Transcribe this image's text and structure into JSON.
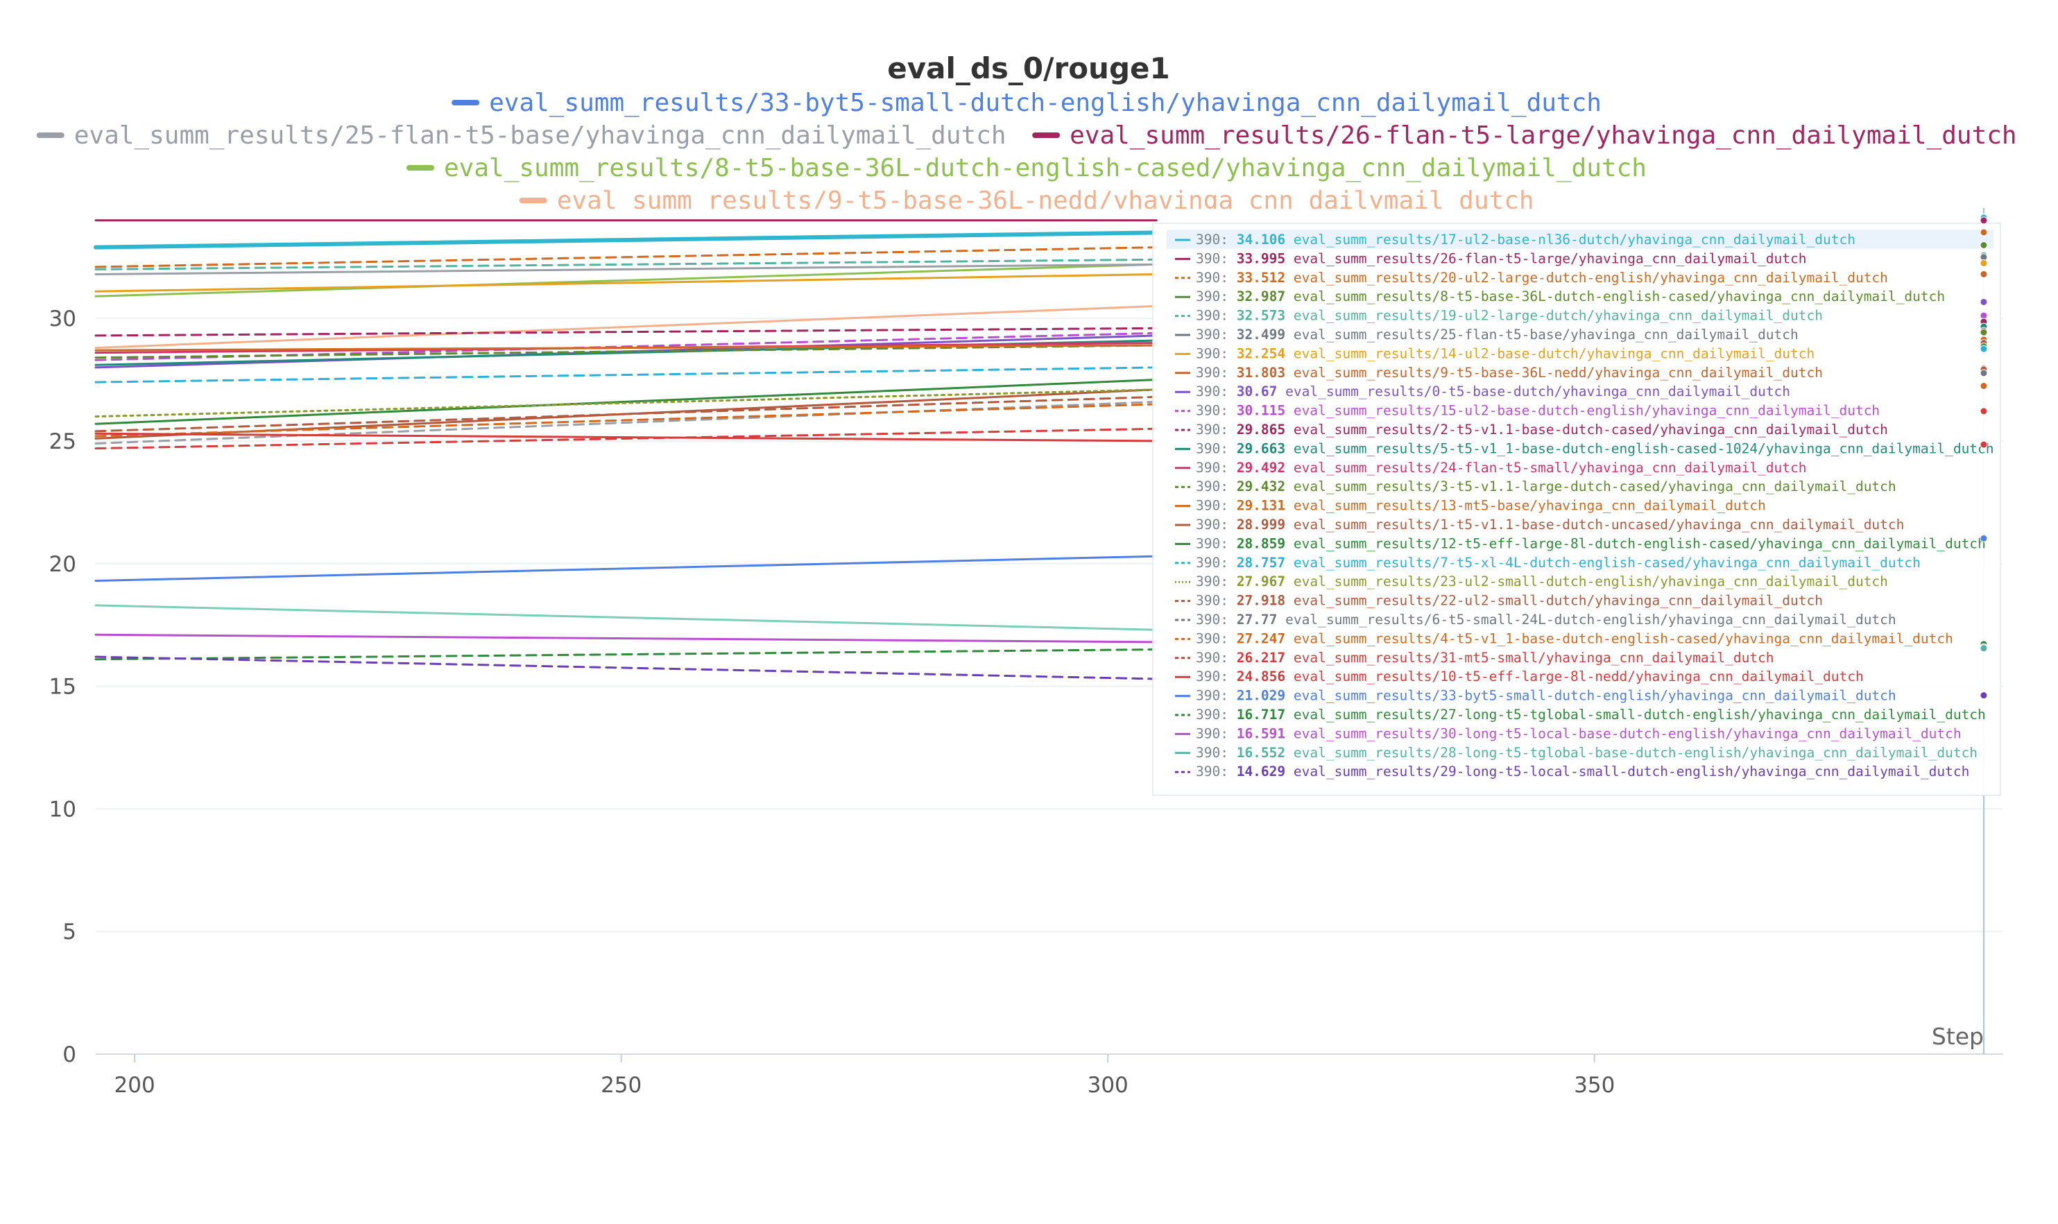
{
  "chart_data": {
    "type": "line",
    "title": "eval_ds_0/rouge1",
    "xlabel": "Step",
    "ylabel": "",
    "xlim": [
      196,
      392
    ],
    "ylim": [
      0,
      34.5
    ],
    "x_ticks": [
      200,
      250,
      300,
      350
    ],
    "y_ticks": [
      0,
      5,
      10,
      15,
      20,
      25,
      30
    ],
    "grid": true,
    "legend_position": "top",
    "legend": [
      {
        "name": "eval_summ_results/33-byt5-small-dutch-english/yhavinga_cnn_dailymail_dutch",
        "color": "#4e7fe3"
      },
      {
        "name": "eval_summ_results/25-flan-t5-base/yhavinga_cnn_dailymail_dutch",
        "color": "#9a9fa7"
      },
      {
        "name": "eval_summ_results/26-flan-t5-large/yhavinga_cnn_dailymail_dutch",
        "color": "#a3245e"
      },
      {
        "name": "eval_summ_results/8-t5-base-36L-dutch-english-cased/yhavinga_cnn_dailymail_dutch",
        "color": "#8cc04f"
      },
      {
        "name": "eval_summ_results/9-t5-base-36L-nedd/yhavinga_cnn_dailymail_dutch",
        "color": "#f4b08c"
      }
    ],
    "tooltip": {
      "step": "390",
      "rows": [
        {
          "value": "34.106",
          "name": "eval_summ_results/17-ul2-base-nl36-dutch/yhavinga_cnn_dailymail_dutch",
          "color": "#2fb6cf",
          "dash": "solid"
        },
        {
          "value": "33.995",
          "name": "eval_summ_results/26-flan-t5-large/yhavinga_cnn_dailymail_dutch",
          "color": "#a3245e",
          "dash": "solid"
        },
        {
          "value": "33.512",
          "name": "eval_summ_results/20-ul2-large-dutch-english/yhavinga_cnn_dailymail_dutch",
          "color": "#d2691e",
          "dash": "dashed"
        },
        {
          "value": "32.987",
          "name": "eval_summ_results/8-t5-base-36L-dutch-english-cased/yhavinga_cnn_dailymail_dutch",
          "color": "#5e8a2e",
          "dash": "solid"
        },
        {
          "value": "32.573",
          "name": "eval_summ_results/19-ul2-large-dutch/yhavinga_cnn_dailymail_dutch",
          "color": "#52b3a0",
          "dash": "dashed"
        },
        {
          "value": "32.499",
          "name": "eval_summ_results/25-flan-t5-base/yhavinga_cnn_dailymail_dutch",
          "color": "#6f7781",
          "dash": "solid"
        },
        {
          "value": "32.254",
          "name": "eval_summ_results/14-ul2-base-dutch/yhavinga_cnn_dailymail_dutch",
          "color": "#e6a01e",
          "dash": "solid"
        },
        {
          "value": "31.803",
          "name": "eval_summ_results/9-t5-base-36L-nedd/yhavinga_cnn_dailymail_dutch",
          "color": "#c8642a",
          "dash": "solid"
        },
        {
          "value": "30.67",
          "name": "eval_summ_results/0-t5-base-dutch/yhavinga_cnn_dailymail_dutch",
          "color": "#7b52c9",
          "dash": "solid"
        },
        {
          "value": "30.115",
          "name": "eval_summ_results/15-ul2-base-dutch-english/yhavinga_cnn_dailymail_dutch",
          "color": "#b94fd0",
          "dash": "dashed"
        },
        {
          "value": "29.865",
          "name": "eval_summ_results/2-t5-v1.1-base-dutch-cased/yhavinga_cnn_dailymail_dutch",
          "color": "#a3245e",
          "dash": "dashed"
        },
        {
          "value": "29.663",
          "name": "eval_summ_results/5-t5-v1_1-base-dutch-english-cased-1024/yhavinga_cnn_dailymail_dutch",
          "color": "#1e8c7a",
          "dash": "solid"
        },
        {
          "value": "29.492",
          "name": "eval_summ_results/24-flan-t5-small/yhavinga_cnn_dailymail_dutch",
          "color": "#d6336c",
          "dash": "solid"
        },
        {
          "value": "29.432",
          "name": "eval_summ_results/3-t5-v1.1-large-dutch-cased/yhavinga_cnn_dailymail_dutch",
          "color": "#5e8a2e",
          "dash": "dashed"
        },
        {
          "value": "29.131",
          "name": "eval_summ_results/13-mt5-base/yhavinga_cnn_dailymail_dutch",
          "color": "#d2691e",
          "dash": "solid"
        },
        {
          "value": "28.999",
          "name": "eval_summ_results/1-t5-v1.1-base-dutch-uncased/yhavinga_cnn_dailymail_dutch",
          "color": "#b35a3c",
          "dash": "solid"
        },
        {
          "value": "28.859",
          "name": "eval_summ_results/12-t5-eff-large-8l-dutch-english-cased/yhavinga_cnn_dailymail_dutch",
          "color": "#2f8a3a",
          "dash": "solid"
        },
        {
          "value": "28.757",
          "name": "eval_summ_results/7-t5-xl-4L-dutch-english-cased/yhavinga_cnn_dailymail_dutch",
          "color": "#2bb0d8",
          "dash": "dashed"
        },
        {
          "value": "27.967",
          "name": "eval_summ_results/23-ul2-small-dutch-english/yhavinga_cnn_dailymail_dutch",
          "color": "#8a9a2e",
          "dash": "dotted"
        },
        {
          "value": "27.918",
          "name": "eval_summ_results/22-ul2-small-dutch/yhavinga_cnn_dailymail_dutch",
          "color": "#b35a3c",
          "dash": "dashed"
        },
        {
          "value": "27.77",
          "name": "eval_summ_results/6-t5-small-24L-dutch-english/yhavinga_cnn_dailymail_dutch",
          "color": "#6f7781",
          "dash": "dashed"
        },
        {
          "value": "27.247",
          "name": "eval_summ_results/4-t5-v1_1-base-dutch-english-cased/yhavinga_cnn_dailymail_dutch",
          "color": "#d2691e",
          "dash": "dashed"
        },
        {
          "value": "26.217",
          "name": "eval_summ_results/31-mt5-small/yhavinga_cnn_dailymail_dutch",
          "color": "#d63c3c",
          "dash": "dashed"
        },
        {
          "value": "24.856",
          "name": "eval_summ_results/10-t5-eff-large-8l-nedd/yhavinga_cnn_dailymail_dutch",
          "color": "#d63c3c",
          "dash": "solid"
        },
        {
          "value": "21.029",
          "name": "eval_summ_results/33-byt5-small-dutch-english/yhavinga_cnn_dailymail_dutch",
          "color": "#4e7fe3",
          "dash": "solid"
        },
        {
          "value": "16.717",
          "name": "eval_summ_results/27-long-t5-tglobal-small-dutch-english/yhavinga_cnn_dailymail_dutch",
          "color": "#2f8a3a",
          "dash": "dashed"
        },
        {
          "value": "16.591",
          "name": "eval_summ_results/30-long-t5-local-base-dutch-english/yhavinga_cnn_dailymail_dutch",
          "color": "#b94fd0",
          "dash": "solid"
        },
        {
          "value": "16.552",
          "name": "eval_summ_results/28-long-t5-tglobal-base-dutch-english/yhavinga_cnn_dailymail_dutch",
          "color": "#52b3a0",
          "dash": "solid"
        },
        {
          "value": "14.629",
          "name": "eval_summ_results/29-long-t5-local-small-dutch-english/yhavinga_cnn_dailymail_dutch",
          "color": "#6a3fb5",
          "dash": "dashed"
        }
      ]
    },
    "series": [
      {
        "name": "eval_summ_results/17-ul2-base-nl36-dutch/yhavinga_cnn_dailymail_dutch",
        "color": "#2fb6cf",
        "dash": "solid",
        "width": 6,
        "x": [
          196,
          305
        ],
        "y": [
          32.9,
          33.5
        ]
      },
      {
        "name": "eval_summ_results/26-flan-t5-large/yhavinga_cnn_dailymail_dutch",
        "color": "#a3245e",
        "dash": "solid",
        "width": 3,
        "x": [
          196,
          305
        ],
        "y": [
          34.0,
          34.0
        ]
      },
      {
        "name": "eval_summ_results/20-ul2-large-dutch-english/yhavinga_cnn_dailymail_dutch",
        "color": "#d2691e",
        "dash": "dashed",
        "width": 3,
        "x": [
          196,
          305
        ],
        "y": [
          32.1,
          32.9
        ]
      },
      {
        "name": "eval_summ_results/8-t5-base-36L-dutch-english-cased/yhavinga_cnn_dailymail_dutch",
        "color": "#8cc04f",
        "dash": "solid",
        "width": 3,
        "x": [
          196,
          305
        ],
        "y": [
          30.9,
          32.2
        ]
      },
      {
        "name": "eval_summ_results/19-ul2-large-dutch/yhavinga_cnn_dailymail_dutch",
        "color": "#52b3a0",
        "dash": "dashed",
        "width": 3,
        "x": [
          196,
          305
        ],
        "y": [
          32.0,
          32.4
        ]
      },
      {
        "name": "eval_summ_results/25-flan-t5-base/yhavinga_cnn_dailymail_dutch",
        "color": "#9a9fa7",
        "dash": "solid",
        "width": 3,
        "x": [
          196,
          305
        ],
        "y": [
          31.8,
          32.2
        ]
      },
      {
        "name": "eval_summ_results/14-ul2-base-dutch/yhavinga_cnn_dailymail_dutch",
        "color": "#e6a01e",
        "dash": "solid",
        "width": 3,
        "x": [
          196,
          305
        ],
        "y": [
          31.1,
          31.8
        ]
      },
      {
        "name": "eval_summ_results/9-t5-base-36L-nedd/yhavinga_cnn_dailymail_dutch",
        "color": "#f4b08c",
        "dash": "solid",
        "width": 3,
        "x": [
          196,
          305
        ],
        "y": [
          28.8,
          30.5
        ]
      },
      {
        "name": "eval_summ_results/0-t5-base-dutch/yhavinga_cnn_dailymail_dutch",
        "color": "#7b52c9",
        "dash": "solid",
        "width": 3,
        "x": [
          196,
          305
        ],
        "y": [
          28.0,
          29.3
        ]
      },
      {
        "name": "eval_summ_results/15-ul2-base-dutch-english/yhavinga_cnn_dailymail_dutch",
        "color": "#b94fd0",
        "dash": "dashed",
        "width": 3,
        "x": [
          196,
          305
        ],
        "y": [
          28.3,
          29.4
        ]
      },
      {
        "name": "eval_summ_results/2-t5-v1.1-base-dutch-cased/yhavinga_cnn_dailymail_dutch",
        "color": "#a3245e",
        "dash": "dashed",
        "width": 3,
        "x": [
          196,
          305
        ],
        "y": [
          29.3,
          29.6
        ]
      },
      {
        "name": "eval_summ_results/5-t5-v1_1-base-dutch-english-cased-1024/yhavinga_cnn_dailymail_dutch",
        "color": "#1e8c7a",
        "dash": "solid",
        "width": 3,
        "x": [
          196,
          305
        ],
        "y": [
          28.1,
          29.1
        ]
      },
      {
        "name": "eval_summ_results/24-flan-t5-small/yhavinga_cnn_dailymail_dutch",
        "color": "#d6336c",
        "dash": "solid",
        "width": 3,
        "x": [
          196,
          305
        ],
        "y": [
          28.6,
          29.0
        ]
      },
      {
        "name": "eval_summ_results/3-t5-v1.1-large-dutch-cased/yhavinga_cnn_dailymail_dutch",
        "color": "#5e8a2e",
        "dash": "dashed",
        "width": 3,
        "x": [
          196,
          305
        ],
        "y": [
          28.4,
          28.9
        ]
      },
      {
        "name": "eval_summ_results/13-mt5-base/yhavinga_cnn_dailymail_dutch",
        "color": "#d2691e",
        "dash": "solid",
        "width": 3,
        "x": [
          196,
          305
        ],
        "y": [
          28.7,
          28.9
        ]
      },
      {
        "name": "eval_summ_results/1-t5-v1.1-base-dutch-uncased/yhavinga_cnn_dailymail_dutch",
        "color": "#b35a3c",
        "dash": "solid",
        "width": 3,
        "x": [
          196,
          305
        ],
        "y": [
          25.1,
          27.1
        ]
      },
      {
        "name": "eval_summ_results/12-t5-eff-large-8l-dutch-english-cased/yhavinga_cnn_dailymail_dutch",
        "color": "#2f8a3a",
        "dash": "solid",
        "width": 3,
        "x": [
          196,
          305
        ],
        "y": [
          25.7,
          27.5
        ]
      },
      {
        "name": "eval_summ_results/7-t5-xl-4L-dutch-english-cased/yhavinga_cnn_dailymail_dutch",
        "color": "#2bb0d8",
        "dash": "dashed",
        "width": 3,
        "x": [
          196,
          305
        ],
        "y": [
          27.4,
          28.0
        ]
      },
      {
        "name": "eval_summ_results/23-ul2-small-dutch-english/yhavinga_cnn_dailymail_dutch",
        "color": "#8a9a2e",
        "dash": "dotted",
        "width": 3,
        "x": [
          196,
          305
        ],
        "y": [
          26.0,
          27.1
        ]
      },
      {
        "name": "eval_summ_results/22-ul2-small-dutch/yhavinga_cnn_dailymail_dutch",
        "color": "#b35a3c",
        "dash": "dashed",
        "width": 3,
        "x": [
          196,
          305
        ],
        "y": [
          25.4,
          26.8
        ]
      },
      {
        "name": "eval_summ_results/6-t5-small-24L-dutch-english/yhavinga_cnn_dailymail_dutch",
        "color": "#9a9fa7",
        "dash": "dashed",
        "width": 3,
        "x": [
          196,
          305
        ],
        "y": [
          24.9,
          26.6
        ]
      },
      {
        "name": "eval_summ_results/4-t5-v1_1-base-dutch-english-cased/yhavinga_cnn_dailymail_dutch",
        "color": "#d2691e",
        "dash": "dashed",
        "width": 3,
        "x": [
          196,
          305
        ],
        "y": [
          25.2,
          26.5
        ]
      },
      {
        "name": "eval_summ_results/31-mt5-small/yhavinga_cnn_dailymail_dutch",
        "color": "#d63c3c",
        "dash": "dashed",
        "width": 3,
        "x": [
          196,
          305
        ],
        "y": [
          24.7,
          25.5
        ]
      },
      {
        "name": "eval_summ_results/10-t5-eff-large-8l-nedd/yhavinga_cnn_dailymail_dutch",
        "color": "#d63c3c",
        "dash": "solid",
        "width": 3,
        "x": [
          196,
          305
        ],
        "y": [
          25.3,
          25.0
        ]
      },
      {
        "name": "eval_summ_results/33-byt5-small-dutch-english/yhavinga_cnn_dailymail_dutch",
        "color": "#4e7fe3",
        "dash": "solid",
        "width": 3,
        "x": [
          196,
          305
        ],
        "y": [
          19.3,
          20.3
        ]
      },
      {
        "name": "eval_summ_results/28-long-t5-tglobal-base-dutch-english/yhavinga_cnn_dailymail_dutch",
        "color": "#7ccfb6",
        "dash": "solid",
        "width": 3,
        "x": [
          196,
          305
        ],
        "y": [
          18.3,
          17.3
        ]
      },
      {
        "name": "eval_summ_results/30-long-t5-local-base-dutch-english/yhavinga_cnn_dailymail_dutch",
        "color": "#b94fd0",
        "dash": "solid",
        "width": 3,
        "x": [
          196,
          305
        ],
        "y": [
          17.1,
          16.8
        ]
      },
      {
        "name": "eval_summ_results/27-long-t5-tglobal-small-dutch-english/yhavinga_cnn_dailymail_dutch",
        "color": "#2f8a3a",
        "dash": "dashed",
        "width": 3,
        "x": [
          196,
          305
        ],
        "y": [
          16.1,
          16.5
        ]
      },
      {
        "name": "eval_summ_results/29-long-t5-local-small-dutch-english/yhavinga_cnn_dailymail_dutch",
        "color": "#6a3fb5",
        "dash": "dashed",
        "width": 3,
        "x": [
          196,
          305
        ],
        "y": [
          16.2,
          15.3
        ]
      }
    ]
  }
}
